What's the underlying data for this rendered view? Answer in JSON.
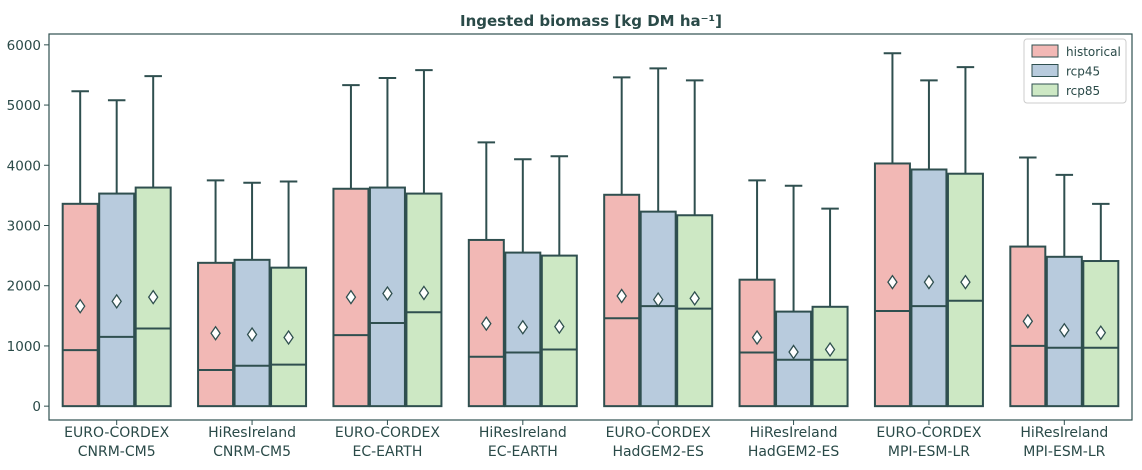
{
  "chart_data": {
    "type": "box",
    "title": "Ingested biomass [kg DM ha⁻¹]",
    "xlabel": "",
    "ylabel": "",
    "ylim": [
      -230,
      6180
    ],
    "yticks": [
      0,
      1000,
      2000,
      3000,
      4000,
      5000,
      6000
    ],
    "grid": false,
    "legend_position": "top-right",
    "colors": {
      "historical": "#f2b8b5",
      "rcp45": "#b8cbdd",
      "rcp85": "#cde8c4",
      "edge": "#2f4f4f"
    },
    "categories": [
      {
        "line1": "EURO-CORDEX",
        "line2": "CNRM-CM5"
      },
      {
        "line1": "HiResIreland",
        "line2": "CNRM-CM5"
      },
      {
        "line1": "EURO-CORDEX",
        "line2": "EC-EARTH"
      },
      {
        "line1": "HiResIreland",
        "line2": "EC-EARTH"
      },
      {
        "line1": "EURO-CORDEX",
        "line2": "HadGEM2-ES"
      },
      {
        "line1": "HiResIreland",
        "line2": "HadGEM2-ES"
      },
      {
        "line1": "EURO-CORDEX",
        "line2": "MPI-ESM-LR"
      },
      {
        "line1": "HiResIreland",
        "line2": "MPI-ESM-LR"
      }
    ],
    "series": [
      {
        "name": "historical",
        "q1": [
          0,
          0,
          0,
          0,
          0,
          0,
          0,
          0
        ],
        "median": [
          930,
          600,
          1180,
          820,
          1460,
          890,
          1580,
          1000
        ],
        "q3": [
          3360,
          2380,
          3610,
          2760,
          3510,
          2100,
          4030,
          2650
        ],
        "whisker_low": [
          0,
          0,
          0,
          0,
          0,
          0,
          0,
          0
        ],
        "whisker_high": [
          5230,
          3750,
          5330,
          4380,
          5460,
          3750,
          5860,
          4130
        ],
        "mean": [
          1660,
          1210,
          1810,
          1370,
          1830,
          1140,
          2060,
          1410
        ]
      },
      {
        "name": "rcp45",
        "q1": [
          0,
          0,
          0,
          0,
          0,
          0,
          0,
          0
        ],
        "median": [
          1150,
          670,
          1380,
          890,
          1660,
          770,
          1660,
          970
        ],
        "q3": [
          3530,
          2430,
          3630,
          2550,
          3230,
          1570,
          3930,
          2480
        ],
        "whisker_low": [
          0,
          0,
          0,
          0,
          0,
          0,
          0,
          0
        ],
        "whisker_high": [
          5080,
          3710,
          5450,
          4100,
          5610,
          3660,
          5410,
          3840
        ],
        "mean": [
          1740,
          1190,
          1870,
          1310,
          1770,
          900,
          2060,
          1260
        ]
      },
      {
        "name": "rcp85",
        "q1": [
          0,
          0,
          0,
          0,
          0,
          0,
          0,
          0
        ],
        "median": [
          1290,
          690,
          1560,
          940,
          1620,
          770,
          1750,
          970
        ],
        "q3": [
          3630,
          2300,
          3530,
          2500,
          3170,
          1650,
          3860,
          2410
        ],
        "whisker_low": [
          0,
          0,
          0,
          0,
          0,
          0,
          0,
          0
        ],
        "whisker_high": [
          5480,
          3730,
          5580,
          4150,
          5410,
          3280,
          5630,
          3360
        ],
        "mean": [
          1810,
          1140,
          1880,
          1320,
          1790,
          940,
          2060,
          1220
        ]
      }
    ]
  }
}
